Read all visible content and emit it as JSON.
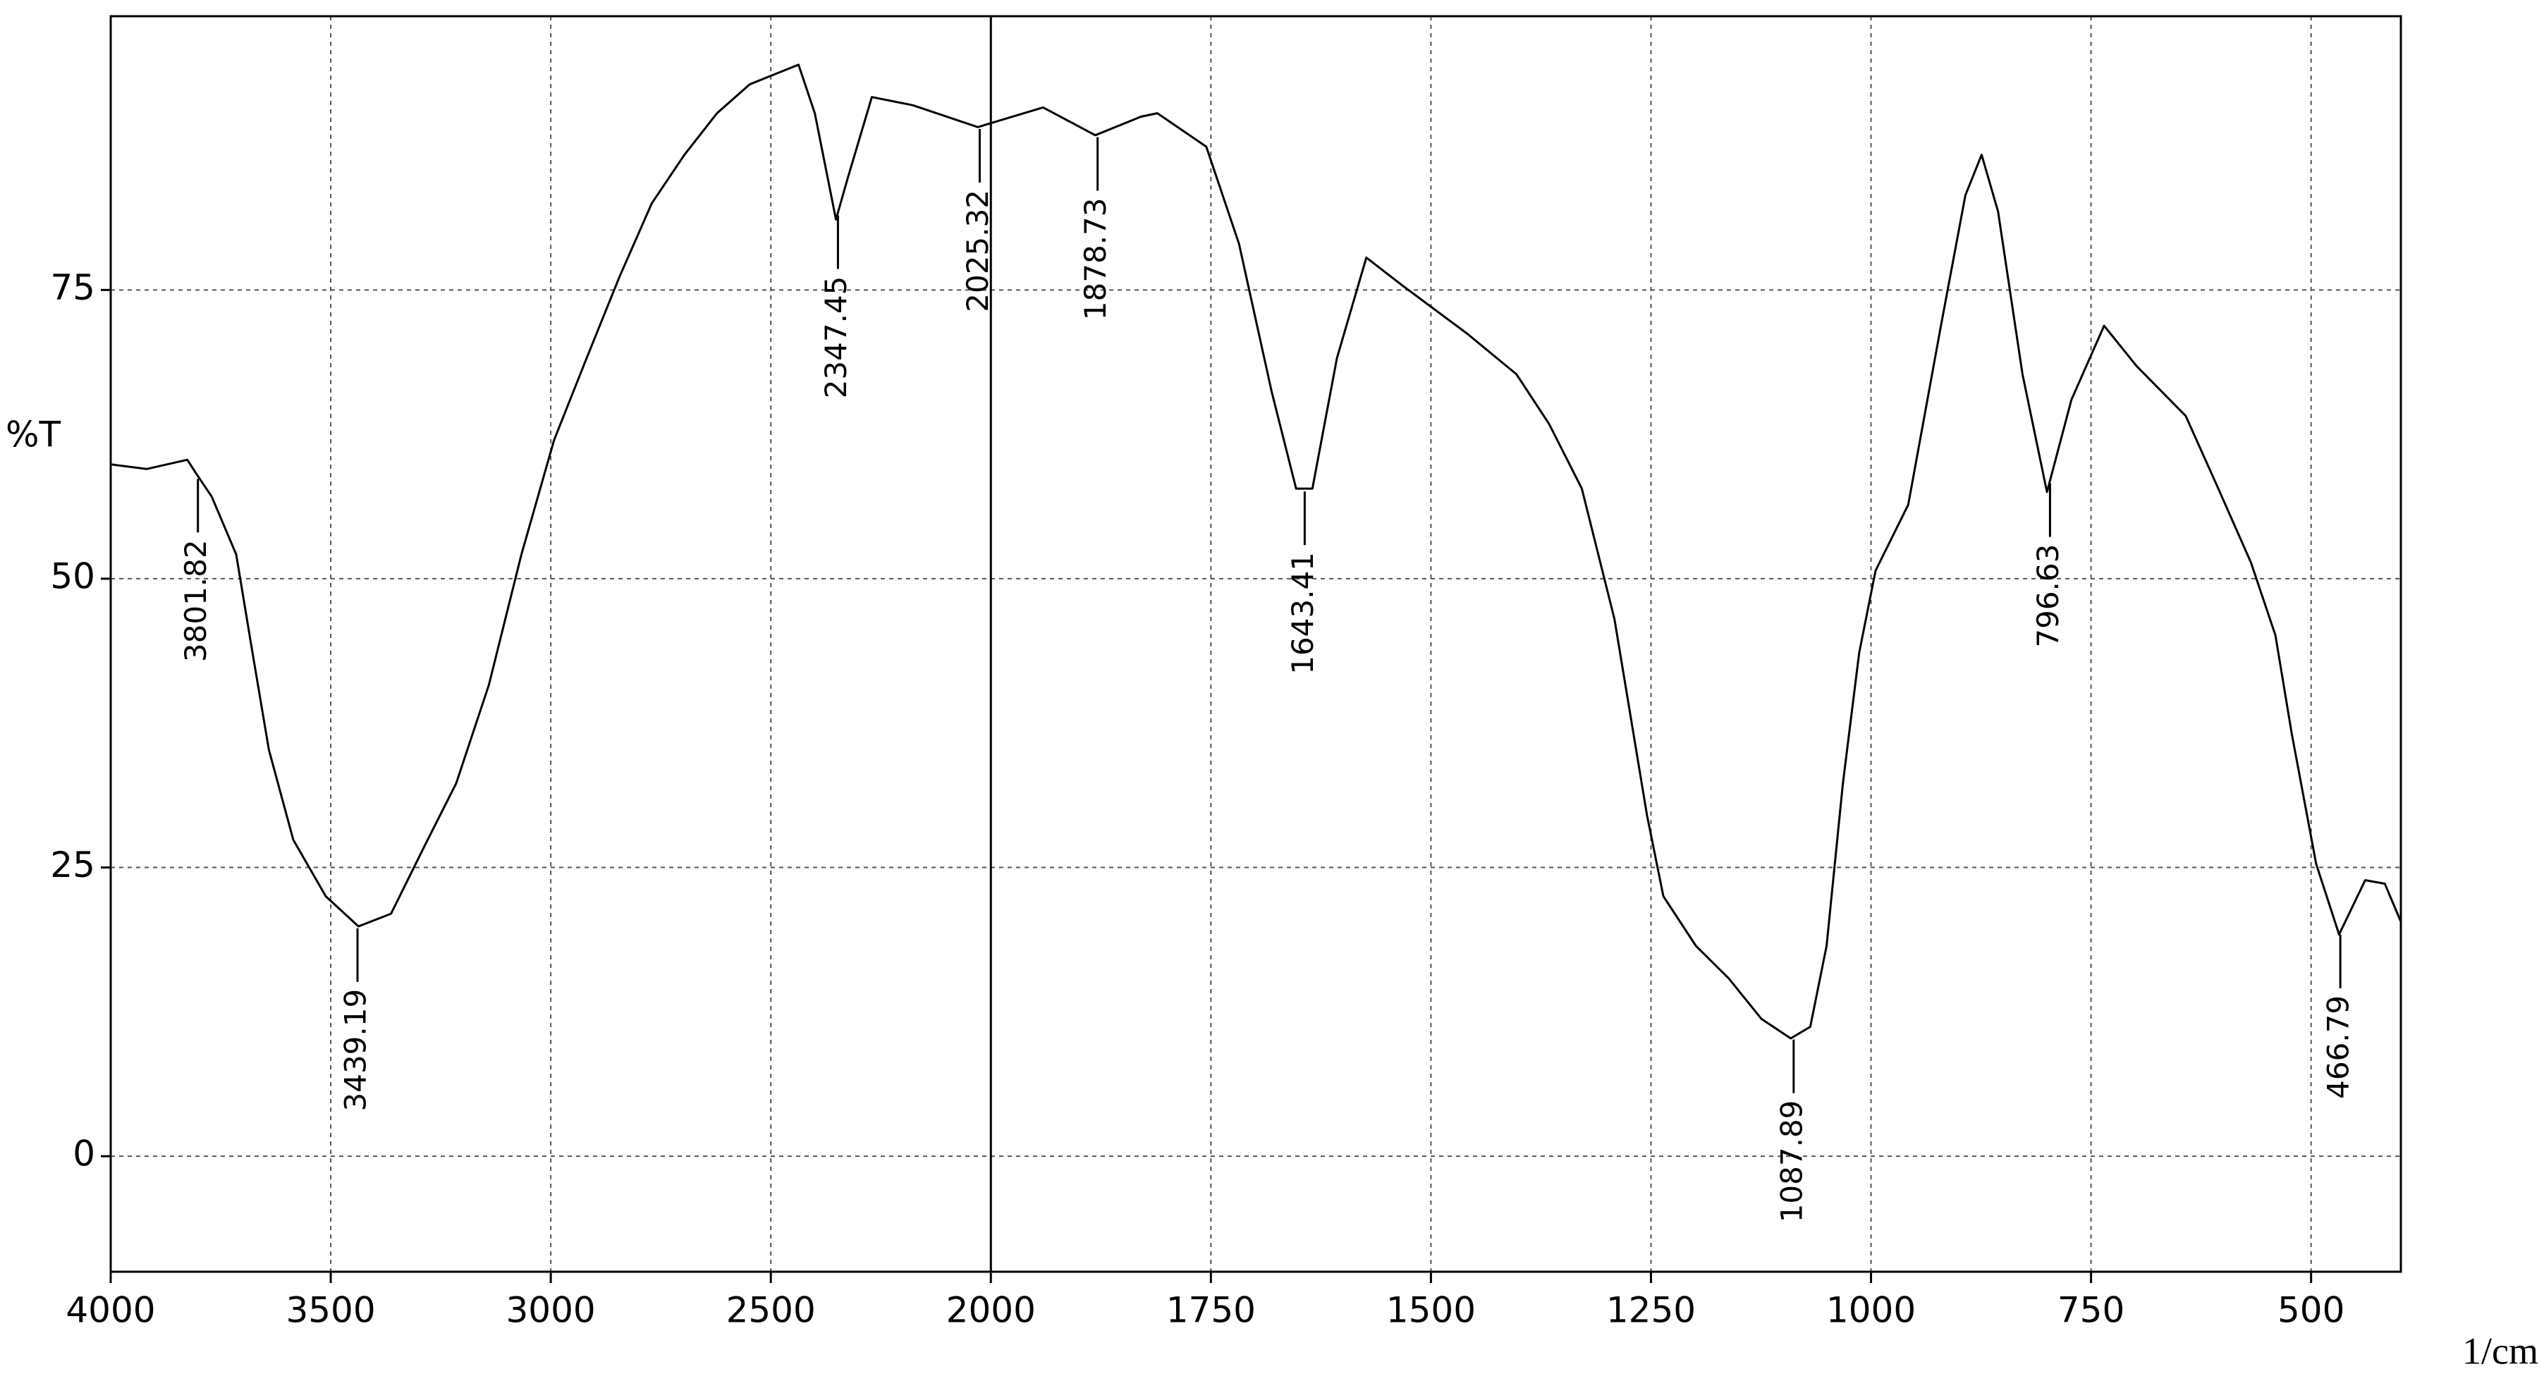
{
  "chart_data": {
    "type": "line",
    "y_label": "%T",
    "x_label": "1/cm",
    "x": [
      4000,
      3918.5,
      3825.9,
      3807.4,
      3770.4,
      3714.8,
      3677.8,
      3640.7,
      3585.2,
      3511.1,
      3437.0,
      3363.0,
      3288.9,
      3214.8,
      3140.7,
      3066.7,
      2992.6,
      2918.5,
      2844.4,
      2770.4,
      2696.3,
      2622.2,
      2548.1,
      2496.3,
      2437.0,
      2400.0,
      2351.9,
      2325.9,
      2270.4,
      2177.8,
      2029.6,
      1940.7,
      1881.3,
      1829.4,
      1810.8,
      1755.2,
      1718.1,
      1681.0,
      1653.2,
      1634.7,
      1606.8,
      1573.4,
      1532.6,
      1495.6,
      1458.5,
      1402.8,
      1365.7,
      1328.6,
      1291.5,
      1273.0,
      1254.5,
      1235.9,
      1198.8,
      1161.7,
      1124.6,
      1091.2,
      1069.0,
      1050.5,
      1031.9,
      1013.4,
      994.8,
      957.7,
      920.6,
      892.8,
      874.3,
      855.7,
      827.9,
      800.1,
      772.3,
      735.2,
      698.1,
      642.5,
      605.4,
      568.3,
      540.5,
      522.0,
      494.2,
      468.2,
      438.5,
      416.3,
      398
    ],
    "values": [
      59.9,
      59.5,
      60.3,
      59.2,
      57.1,
      52.1,
      43.6,
      35.2,
      27.4,
      22.5,
      19.9,
      21.0,
      26.7,
      32.3,
      40.8,
      52.1,
      62.0,
      69.1,
      76.1,
      82.5,
      86.7,
      90.3,
      92.8,
      93.6,
      94.5,
      90.3,
      81.1,
      84.6,
      91.7,
      91.0,
      89.1,
      90.8,
      88.4,
      90.0,
      90.3,
      87.4,
      79.0,
      66.2,
      57.8,
      57.8,
      69.1,
      77.8,
      75.4,
      73.3,
      71.2,
      67.7,
      63.4,
      57.8,
      46.5,
      38.0,
      29.5,
      22.5,
      18.2,
      15.4,
      11.9,
      10.2,
      11.2,
      18.2,
      32.3,
      43.6,
      50.7,
      56.4,
      71.9,
      83.2,
      86.7,
      81.8,
      67.7,
      57.5,
      65.5,
      71.9,
      68.4,
      64.1,
      57.8,
      51.4,
      45.1,
      36.6,
      25.3,
      19.2,
      23.9,
      23.6,
      20.3
    ],
    "color": "#000000",
    "peaks": [
      3801.82,
      3439.19,
      2347.45,
      2025.32,
      1878.73,
      1643.41,
      1087.89,
      796.63,
      466.79
    ],
    "xlim": [
      4000,
      398
    ],
    "xticks": [
      4000,
      3500,
      3000,
      2500,
      2000,
      1750,
      1500,
      1250,
      1000,
      750,
      500
    ],
    "ylim": [
      -10,
      98.7
    ],
    "yticks": [
      0,
      25,
      50,
      75
    ],
    "grid": true
  }
}
